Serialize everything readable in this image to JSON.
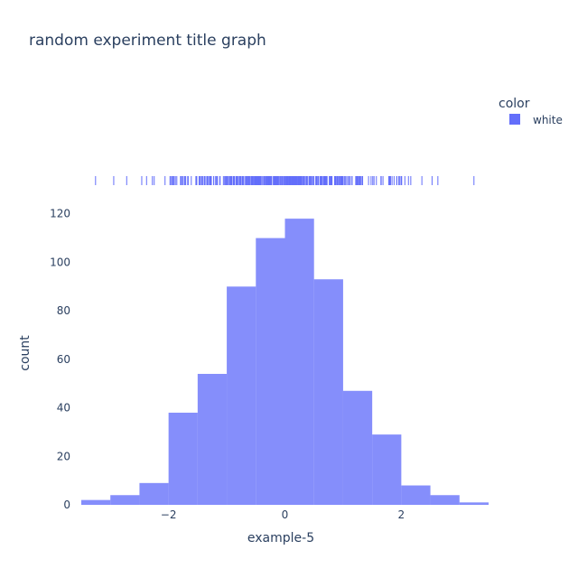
{
  "chart_data": {
    "type": "histogram",
    "title": "random experiment title graph",
    "xlabel": "example-5",
    "ylabel": "count",
    "bin_width": 0.5,
    "bins": [
      {
        "start": -3.5,
        "end": -3.0,
        "count": 2
      },
      {
        "start": -3.0,
        "end": -2.5,
        "count": 4
      },
      {
        "start": -2.5,
        "end": -2.0,
        "count": 9
      },
      {
        "start": -2.0,
        "end": -1.5,
        "count": 38
      },
      {
        "start": -1.5,
        "end": -1.0,
        "count": 54
      },
      {
        "start": -1.0,
        "end": -0.5,
        "count": 90
      },
      {
        "start": -0.5,
        "end": 0.0,
        "count": 110
      },
      {
        "start": 0.0,
        "end": 0.5,
        "count": 118
      },
      {
        "start": 0.5,
        "end": 1.0,
        "count": 93
      },
      {
        "start": 1.0,
        "end": 1.5,
        "count": 47
      },
      {
        "start": 1.5,
        "end": 2.0,
        "count": 29
      },
      {
        "start": 2.0,
        "end": 2.5,
        "count": 8
      },
      {
        "start": 2.5,
        "end": 3.0,
        "count": 4
      },
      {
        "start": 3.0,
        "end": 3.5,
        "count": 1
      }
    ],
    "xlim": [
      -3.5,
      3.5
    ],
    "ylim": [
      0,
      124
    ],
    "x_ticks": [
      {
        "value": -2,
        "label": "−2"
      },
      {
        "value": 0,
        "label": "0"
      },
      {
        "value": 2,
        "label": "2"
      }
    ],
    "y_ticks": [
      {
        "value": 0,
        "label": "0"
      },
      {
        "value": 20,
        "label": "20"
      },
      {
        "value": 40,
        "label": "40"
      },
      {
        "value": 60,
        "label": "60"
      },
      {
        "value": 80,
        "label": "80"
      },
      {
        "value": 100,
        "label": "100"
      },
      {
        "value": 120,
        "label": "120"
      }
    ],
    "grid": false,
    "legend": {
      "title": "color",
      "placement": "top-right",
      "entries": [
        {
          "name": "white",
          "color": "#636efa"
        }
      ]
    },
    "marginal": {
      "type": "rug",
      "position": "top"
    },
    "colors": {
      "bar": "#636efa",
      "bar_opacity": 0.78,
      "text": "#2a3f5f",
      "background": "#ffffff"
    }
  }
}
